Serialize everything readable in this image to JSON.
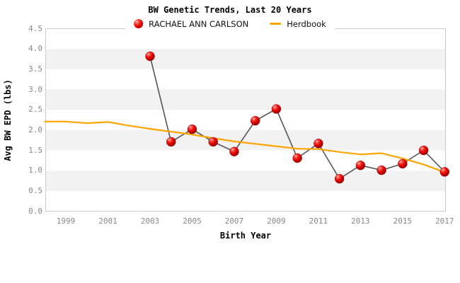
{
  "chart_data": {
    "type": "line",
    "title": "BW Genetic Trends, Last 20 Years",
    "xlabel": "Birth Year",
    "ylabel": "Avg BW EPD (lbs)",
    "xlim": [
      1998.04,
      2017.04
    ],
    "ylim": [
      0,
      4.5
    ],
    "x_ticks": [
      1999,
      2001,
      2003,
      2005,
      2007,
      2009,
      2011,
      2013,
      2015,
      2017
    ],
    "y_ticks": [
      0,
      0.5,
      1,
      1.5,
      2,
      2.5,
      3,
      3.5,
      4,
      4.5
    ],
    "grid": "horizontal-bands",
    "legend_position": "top-center",
    "bands": {
      "color": "#f2f2f2",
      "ranges": [
        [
          0.5,
          1.0
        ],
        [
          1.5,
          2.0
        ],
        [
          2.5,
          3.0
        ],
        [
          3.5,
          4.0
        ]
      ]
    },
    "series": [
      {
        "name": "RACHAEL ANN CARLSON",
        "type": "scatter-line",
        "line_color": "#555555",
        "marker": "glossy-red-ball",
        "marker_color": "#dd0000",
        "x": [
          2003,
          2004,
          2005,
          2006,
          2007,
          2008,
          2009,
          2010,
          2011,
          2012,
          2013,
          2014,
          2015,
          2016,
          2017
        ],
        "y": [
          3.82,
          1.71,
          2.02,
          1.71,
          1.47,
          2.23,
          2.52,
          1.31,
          1.67,
          0.8,
          1.13,
          1.01,
          1.17,
          1.5,
          0.97
        ]
      },
      {
        "name": "Herdbook",
        "type": "line",
        "color": "#ffa500",
        "x": [
          1998,
          1999,
          2000,
          2001,
          2002,
          2003,
          2004,
          2005,
          2006,
          2007,
          2008,
          2009,
          2010,
          2011,
          2012,
          2013,
          2014,
          2015,
          2016,
          2017
        ],
        "y": [
          2.21,
          2.21,
          2.17,
          2.2,
          2.11,
          2.03,
          1.96,
          1.89,
          1.8,
          1.72,
          1.66,
          1.6,
          1.54,
          1.53,
          1.46,
          1.4,
          1.43,
          1.3,
          1.15,
          0.96
        ]
      }
    ]
  },
  "legend": [
    {
      "label": "RACHAEL ANN CARLSON",
      "marker": "red-ball-icon",
      "color": "#dd0000"
    },
    {
      "label": "Herdbook",
      "marker": "orange-line-icon",
      "color": "#ffa500"
    }
  ],
  "colors": {
    "band": "#f2f2f2",
    "plot_border": "#cccccc",
    "tick_text": "#888888",
    "series_line": "#555555",
    "herdbook_line": "#ffa500",
    "dot_red": "#dd0000",
    "text": "#000000"
  }
}
